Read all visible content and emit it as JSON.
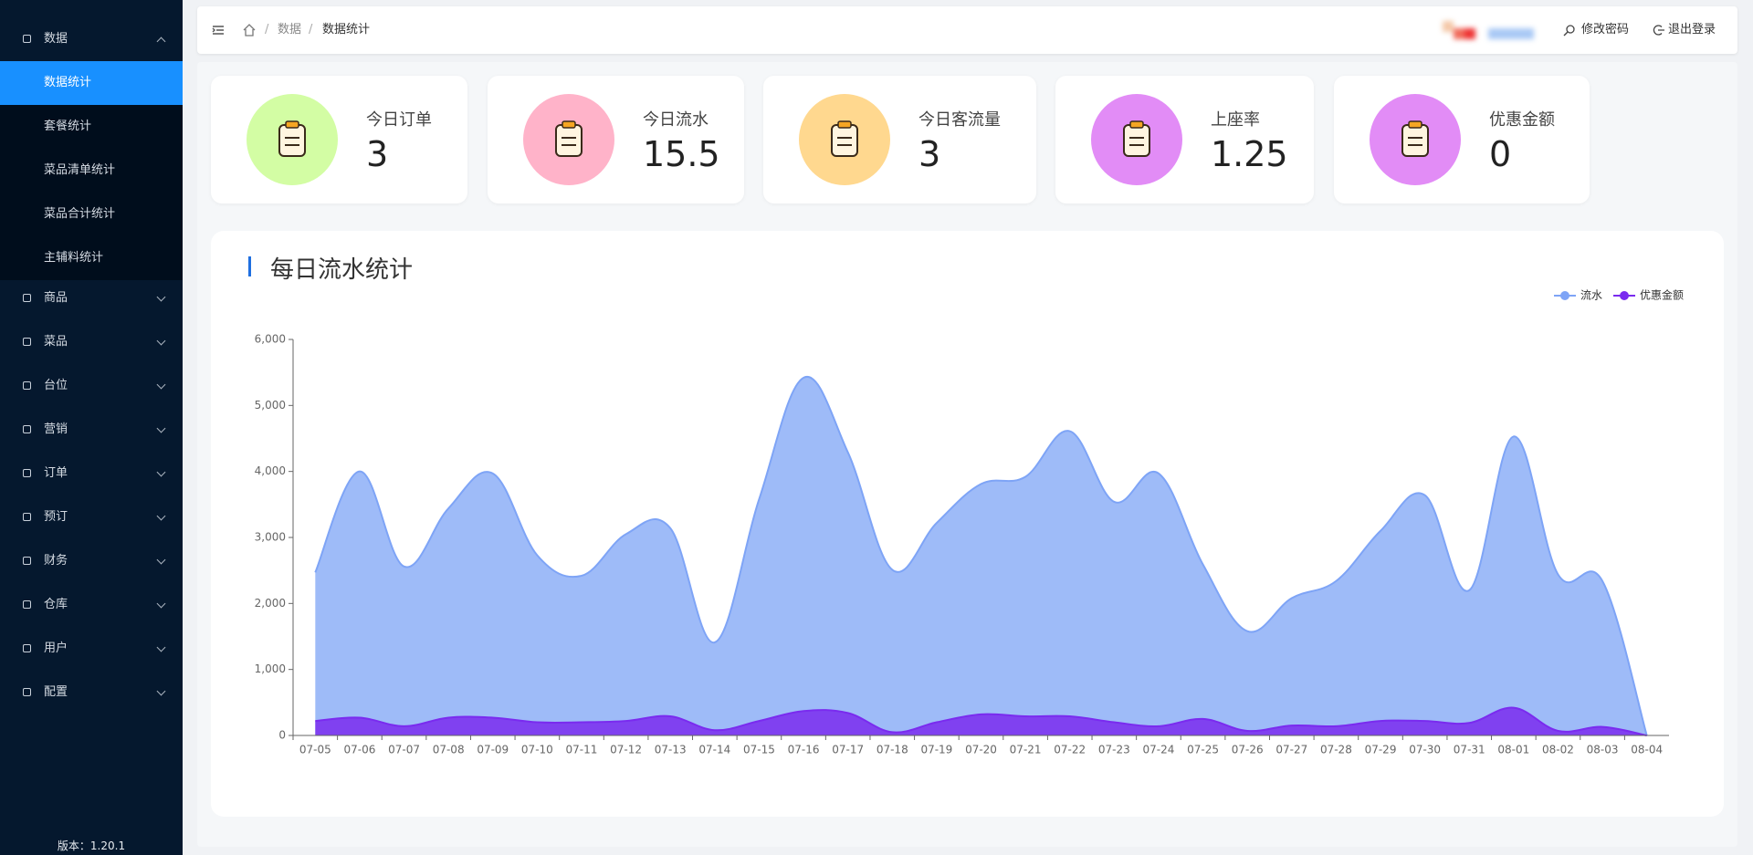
{
  "sidebar": {
    "menu": [
      {
        "label": "数据",
        "children": [
          "数据统计",
          "套餐统计",
          "菜品清单统计",
          "菜品合计统计",
          "主辅料统计"
        ],
        "active": 0
      },
      {
        "label": "商品"
      },
      {
        "label": "菜品"
      },
      {
        "label": "台位"
      },
      {
        "label": "营销"
      },
      {
        "label": "订单"
      },
      {
        "label": "预订"
      },
      {
        "label": "财务"
      },
      {
        "label": "仓库"
      },
      {
        "label": "用户"
      },
      {
        "label": "配置"
      }
    ],
    "version": "版本：1.20.1"
  },
  "header": {
    "breadcrumb": {
      "separator": "/",
      "items": [
        "数据",
        "数据统计"
      ]
    },
    "actions": [
      "修改密码",
      "退出登录"
    ]
  },
  "stats": [
    {
      "label": "今日订单",
      "value": 3,
      "color": "#d3fda4"
    },
    {
      "label": "今日流水",
      "value": 15.5,
      "color": "#ffb3c9"
    },
    {
      "label": "今日客流量",
      "value": 3,
      "color": "#ffd88f"
    },
    {
      "label": "上座率",
      "value": 1.25,
      "color": "#e28cf6"
    },
    {
      "label": "优惠金额",
      "value": 0,
      "color": "#e28cf6"
    }
  ],
  "chart_data": {
    "type": "area",
    "title": "每日流水统计",
    "categories": [
      "07-05",
      "07-06",
      "07-07",
      "07-08",
      "07-09",
      "07-10",
      "07-11",
      "07-12",
      "07-13",
      "07-14",
      "07-15",
      "07-16",
      "07-17",
      "07-18",
      "07-19",
      "07-20",
      "07-21",
      "07-22",
      "07-23",
      "07-24",
      "07-25",
      "07-26",
      "07-27",
      "07-28",
      "07-29",
      "07-30",
      "07-31",
      "08-01",
      "08-02",
      "08-03",
      "08-04"
    ],
    "series": [
      {
        "name": "流水",
        "color": "#7ea4f6",
        "values": [
          2470,
          4000,
          2560,
          3440,
          3970,
          2730,
          2420,
          3050,
          3140,
          1410,
          3580,
          5420,
          4290,
          2510,
          3220,
          3810,
          3920,
          4610,
          3540,
          3970,
          2590,
          1580,
          2080,
          2340,
          3100,
          3640,
          2200,
          4530,
          2440,
          2340,
          0
        ]
      },
      {
        "name": "优惠金额",
        "color": "#7a2bef",
        "values": [
          220,
          270,
          140,
          270,
          270,
          200,
          200,
          220,
          290,
          80,
          220,
          370,
          340,
          50,
          200,
          320,
          290,
          290,
          200,
          140,
          250,
          70,
          150,
          140,
          220,
          220,
          190,
          420,
          70,
          130,
          0
        ]
      }
    ],
    "ylim": [
      0,
      6000
    ],
    "yticks": [
      0,
      {
        "value": 1000,
        "label": "1,000"
      },
      {
        "value": 2000,
        "label": "2,000"
      },
      {
        "value": 3000,
        "label": "3,000"
      },
      {
        "value": 4000,
        "label": "4,000"
      },
      {
        "value": 5000,
        "label": "5,000"
      },
      {
        "value": 6000,
        "label": "6,000"
      }
    ],
    "legend": "top-right"
  }
}
